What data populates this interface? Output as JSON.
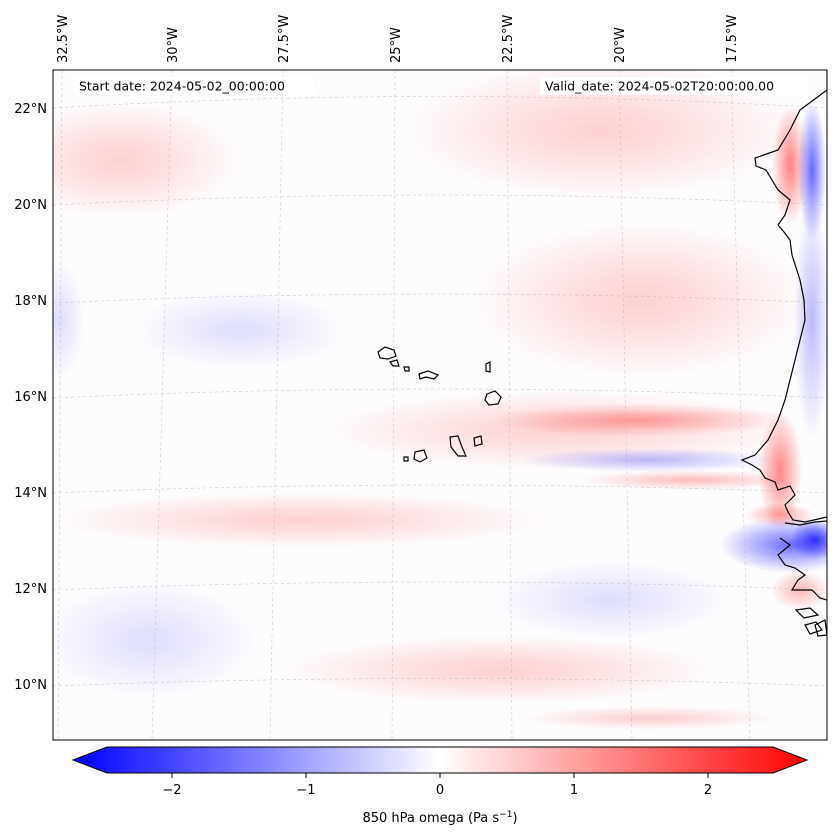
{
  "map": {
    "header": {
      "start_label": "Start date: 2024-05-02_00:00:00",
      "valid_label": "Valid_date: 2024-05-02T20:00:00.00"
    },
    "lon_labels": [
      "32.5°W",
      "30°W",
      "27.5°W",
      "25°W",
      "22.5°W",
      "20°W",
      "17.5°W"
    ],
    "lat_labels": [
      "22°N",
      "20°N",
      "18°N",
      "16°N",
      "14°N",
      "12°N",
      "10°N"
    ],
    "field": "850 hPa omega",
    "colormap": "bwr",
    "colors": {
      "negative": "#0000ff",
      "neutral": "#ffffff",
      "positive": "#ff0000",
      "coast": "#000000"
    }
  },
  "colorbar": {
    "ticks": [
      "−2",
      "−1",
      "0",
      "1",
      "2"
    ],
    "label_main": "850 hPa omega (Pa s",
    "label_exp": "−1",
    "label_end": ")"
  }
}
